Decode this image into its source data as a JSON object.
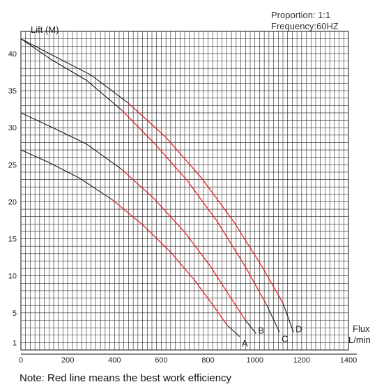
{
  "chart_data": {
    "type": "line",
    "ylabel": "Lift (M)",
    "xlabel_line1": "Flux",
    "xlabel_line2": "L/min",
    "info_line1": "Proportion: 1:1",
    "info_line2": "Frequency:60HZ",
    "xlim": [
      0,
      1400
    ],
    "ylim": [
      0,
      43
    ],
    "x_ticks": [
      0,
      200,
      400,
      600,
      800,
      1000,
      1200,
      1400
    ],
    "y_ticks": [
      1,
      5,
      10,
      15,
      20,
      25,
      30,
      35,
      40
    ],
    "grid": true,
    "colors": {
      "normal": "#1a1a1a",
      "efficient": "#e0202a",
      "grid": "#222222"
    },
    "series": [
      {
        "name": "A",
        "points": [
          [
            0,
            27
          ],
          [
            120,
            25.3
          ],
          [
            250,
            23.2
          ],
          [
            390,
            20.3
          ],
          [
            520,
            16.9
          ],
          [
            640,
            13.2
          ],
          [
            740,
            9.5
          ],
          [
            820,
            6.1
          ],
          [
            880,
            3.4
          ],
          [
            935,
            1.8
          ]
        ],
        "red_range": [
          390,
          880
        ]
      },
      {
        "name": "B",
        "points": [
          [
            0,
            32
          ],
          [
            130,
            30.1
          ],
          [
            280,
            27.8
          ],
          [
            430,
            24.4
          ],
          [
            570,
            20.4
          ],
          [
            700,
            15.9
          ],
          [
            810,
            11.3
          ],
          [
            900,
            6.9
          ],
          [
            960,
            4.0
          ],
          [
            1005,
            2.2
          ]
        ],
        "red_range": [
          430,
          960
        ]
      },
      {
        "name": "C",
        "points": [
          [
            0,
            42
          ],
          [
            130,
            39.2
          ],
          [
            280,
            36.4
          ],
          [
            430,
            32.4
          ],
          [
            570,
            27.9
          ],
          [
            710,
            22.9
          ],
          [
            840,
            17.3
          ],
          [
            960,
            11.2
          ],
          [
            1050,
            6.1
          ],
          [
            1105,
            2.4
          ]
        ],
        "red_range": [
          430,
          1050
        ]
      },
      {
        "name": "D",
        "points": [
          [
            0,
            42
          ],
          [
            140,
            39.7
          ],
          [
            300,
            37.1
          ],
          [
            460,
            33.3
          ],
          [
            620,
            28.7
          ],
          [
            770,
            23.3
          ],
          [
            910,
            17.3
          ],
          [
            1030,
            11.3
          ],
          [
            1120,
            6.3
          ],
          [
            1165,
            2.4
          ]
        ],
        "red_range": [
          460,
          1120
        ]
      }
    ]
  },
  "note": "Note: Red line means the best work efficiency"
}
